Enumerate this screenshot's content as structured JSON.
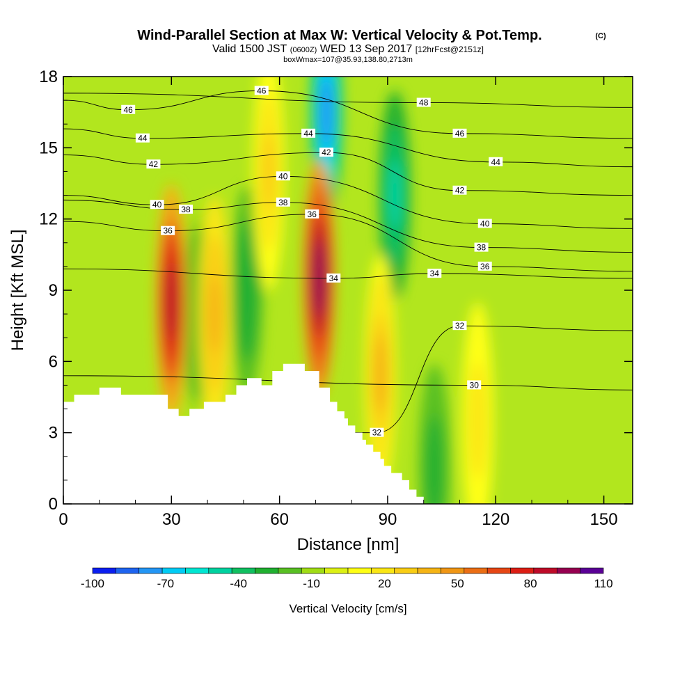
{
  "title": {
    "main": "Wind-Parallel Section at Max W: Vertical Velocity & Pot.Temp.",
    "main_mark": "(C)",
    "valid_a": "Valid 1500 JST",
    "valid_b": "(0600Z)",
    "valid_c": "WED 13 Sep 2017",
    "valid_d": "[12hrFcst@2151z]",
    "box": "boxWmax=107@35.93,138.80,2713m"
  },
  "chart_data": {
    "type": "heatmap",
    "title": "Wind-Parallel Section at Max W: Vertical Velocity & Pot.Temp.",
    "xlabel": "Distance [nm]",
    "ylabel": "Height [Kft MSL]",
    "xlim": [
      0,
      158
    ],
    "ylim": [
      0,
      18
    ],
    "x_ticks": [
      0,
      30,
      60,
      90,
      120,
      150
    ],
    "y_ticks": [
      0,
      3,
      6,
      9,
      12,
      15,
      18
    ],
    "colorbar": {
      "label": "Vertical Velocity [cm/s]",
      "ticks": [
        -100,
        -70,
        -40,
        -10,
        20,
        50,
        80,
        110
      ],
      "levels": [
        -100,
        -90,
        -80,
        -70,
        -60,
        -50,
        -40,
        -30,
        -20,
        -10,
        0,
        10,
        20,
        30,
        40,
        50,
        60,
        70,
        80,
        90,
        100,
        110
      ],
      "colors": [
        "#0a1ef0",
        "#1e64f0",
        "#2396f5",
        "#00ccf5",
        "#00e6d2",
        "#00d2a0",
        "#10c060",
        "#20b030",
        "#58c023",
        "#a0dc14",
        "#dcf014",
        "#ffff14",
        "#fae614",
        "#f9cd14",
        "#f5b414",
        "#f09614",
        "#eb6e14",
        "#e64614",
        "#dc1e14",
        "#be0a28",
        "#960050",
        "#5a0096"
      ]
    },
    "updrafts": [
      {
        "x": 30,
        "z": 8.5,
        "w": 95
      },
      {
        "x": 42,
        "z": 8.0,
        "w": 45
      },
      {
        "x": 57,
        "z": 14.0,
        "w": 30
      },
      {
        "x": 71,
        "z": 9.5,
        "w": 107
      },
      {
        "x": 88,
        "z": 5.5,
        "w": 40
      },
      {
        "x": 115,
        "z": 3.5,
        "w": 25
      }
    ],
    "downdrafts": [
      {
        "x": 37,
        "z": 8.0,
        "w": -20
      },
      {
        "x": 51,
        "z": 9.0,
        "w": -30
      },
      {
        "x": 73,
        "z": 16.5,
        "w": -80
      },
      {
        "x": 92,
        "z": 13.0,
        "w": -45
      },
      {
        "x": 103,
        "z": 1.5,
        "w": -25
      }
    ],
    "theta_contours": [
      {
        "value": 30,
        "label_xy": [
          114,
          5
        ]
      },
      {
        "value": 32,
        "label_xy": [
          110,
          7.5
        ]
      },
      {
        "value": 32,
        "label_xy": [
          87,
          3
        ]
      },
      {
        "value": 34,
        "label_xy": [
          75,
          9.5
        ]
      },
      {
        "value": 34,
        "label_xy": [
          103,
          9.7
        ]
      },
      {
        "value": 36,
        "label_xy": [
          29,
          11.5
        ]
      },
      {
        "value": 36,
        "label_xy": [
          69,
          12.2
        ]
      },
      {
        "value": 36,
        "label_xy": [
          117,
          10
        ]
      },
      {
        "value": 38,
        "label_xy": [
          34,
          12.4
        ]
      },
      {
        "value": 38,
        "label_xy": [
          61,
          12.7
        ]
      },
      {
        "value": 38,
        "label_xy": [
          116,
          10.8
        ]
      },
      {
        "value": 40,
        "label_xy": [
          26,
          12.6
        ]
      },
      {
        "value": 40,
        "label_xy": [
          61,
          13.8
        ]
      },
      {
        "value": 40,
        "label_xy": [
          117,
          11.8
        ]
      },
      {
        "value": 42,
        "label_xy": [
          25,
          14.3
        ]
      },
      {
        "value": 42,
        "label_xy": [
          73,
          14.8
        ]
      },
      {
        "value": 42,
        "label_xy": [
          110,
          13.2
        ]
      },
      {
        "value": 44,
        "label_xy": [
          22,
          15.4
        ]
      },
      {
        "value": 44,
        "label_xy": [
          68,
          15.6
        ]
      },
      {
        "value": 44,
        "label_xy": [
          120,
          14.4
        ]
      },
      {
        "value": 46,
        "label_xy": [
          18,
          16.6
        ]
      },
      {
        "value": 46,
        "label_xy": [
          55,
          17.4
        ]
      },
      {
        "value": 46,
        "label_xy": [
          110,
          15.6
        ]
      },
      {
        "value": 48,
        "label_xy": [
          100,
          16.9
        ]
      }
    ],
    "terrain_kft": [
      [
        0,
        4.3
      ],
      [
        3,
        4.3
      ],
      [
        3,
        4.6
      ],
      [
        10,
        4.6
      ],
      [
        10,
        4.9
      ],
      [
        16,
        4.9
      ],
      [
        16,
        4.6
      ],
      [
        29,
        4.6
      ],
      [
        29,
        4.0
      ],
      [
        32,
        4.0
      ],
      [
        32,
        3.7
      ],
      [
        35,
        3.7
      ],
      [
        35,
        4.0
      ],
      [
        39,
        4.0
      ],
      [
        39,
        4.3
      ],
      [
        45,
        4.3
      ],
      [
        45,
        4.6
      ],
      [
        48,
        4.6
      ],
      [
        48,
        5.0
      ],
      [
        51,
        5.0
      ],
      [
        51,
        5.3
      ],
      [
        55,
        5.3
      ],
      [
        55,
        5.0
      ],
      [
        58,
        5.0
      ],
      [
        58,
        5.6
      ],
      [
        61,
        5.6
      ],
      [
        61,
        5.9
      ],
      [
        67,
        5.9
      ],
      [
        67,
        5.6
      ],
      [
        71,
        5.6
      ],
      [
        71,
        4.9
      ],
      [
        74,
        4.9
      ],
      [
        74,
        4.3
      ],
      [
        76,
        4.3
      ],
      [
        76,
        3.9
      ],
      [
        78,
        3.9
      ],
      [
        78,
        3.6
      ],
      [
        79,
        3.6
      ],
      [
        79,
        3.3
      ],
      [
        81,
        3.3
      ],
      [
        81,
        3.0
      ],
      [
        83,
        3.0
      ],
      [
        83,
        2.7
      ],
      [
        84,
        2.7
      ],
      [
        84,
        2.5
      ],
      [
        86,
        2.5
      ],
      [
        86,
        2.2
      ],
      [
        88,
        2.2
      ],
      [
        88,
        1.9
      ],
      [
        89,
        1.9
      ],
      [
        89,
        1.6
      ],
      [
        91,
        1.6
      ],
      [
        91,
        1.3
      ],
      [
        94,
        1.3
      ],
      [
        94,
        1.0
      ],
      [
        96,
        1.0
      ],
      [
        96,
        0.6
      ],
      [
        98,
        0.6
      ],
      [
        98,
        0.3
      ],
      [
        100,
        0.3
      ],
      [
        100,
        0.0
      ]
    ]
  }
}
